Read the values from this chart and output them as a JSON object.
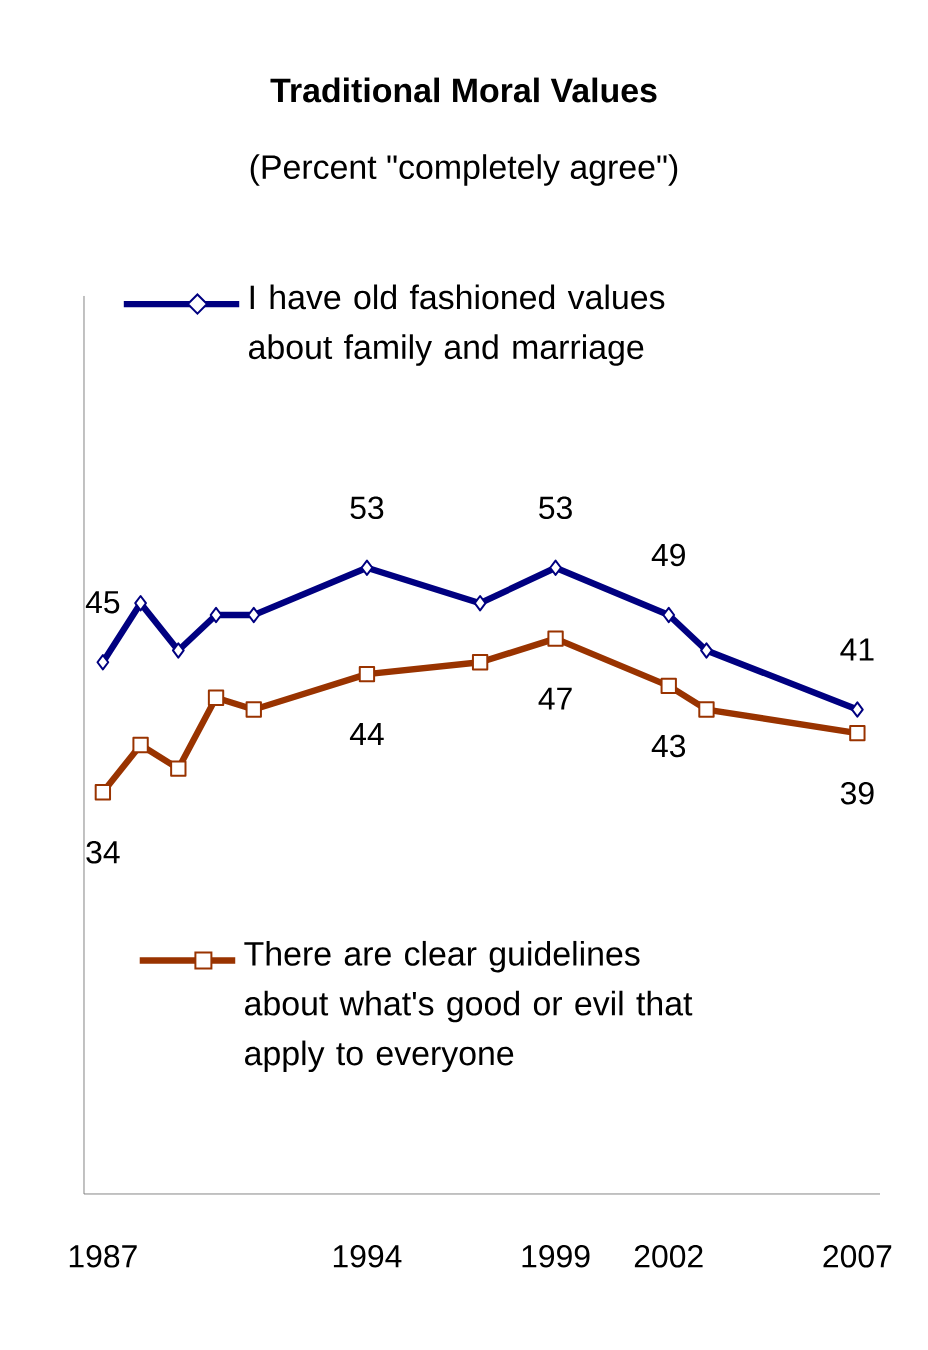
{
  "chart_data": {
    "type": "line",
    "title": "Traditional Moral Values",
    "subtitle": "(Percent \"completely agree\")",
    "x": [
      1987,
      1988,
      1989,
      1990,
      1991,
      1994,
      1997,
      1999,
      2002,
      2003,
      2007
    ],
    "xlim": [
      1986.5,
      2007.6
    ],
    "xticks": [
      1987,
      1994,
      1999,
      2002,
      2007
    ],
    "ylim": [
      0,
      76
    ],
    "tick_labels": "x",
    "legend": "left",
    "series": [
      {
        "name": "I have old fashioned values about family and marriage",
        "color": "#000080",
        "marker": "diamond",
        "values": [
          45,
          50,
          46,
          49,
          49,
          53,
          50,
          53,
          49,
          46,
          41
        ],
        "value_labels": [
          "45",
          null,
          null,
          null,
          null,
          "53",
          null,
          "53",
          "49",
          null,
          "41"
        ]
      },
      {
        "name": "There are clear guidelines about what's good or evil that apply to everyone",
        "color": "#993300",
        "marker": "square",
        "values": [
          34,
          38,
          36,
          42,
          41,
          44,
          45,
          47,
          43,
          41,
          39
        ],
        "value_labels": [
          "34",
          null,
          null,
          null,
          null,
          "44",
          null,
          "47",
          "43",
          null,
          "39"
        ]
      }
    ]
  }
}
